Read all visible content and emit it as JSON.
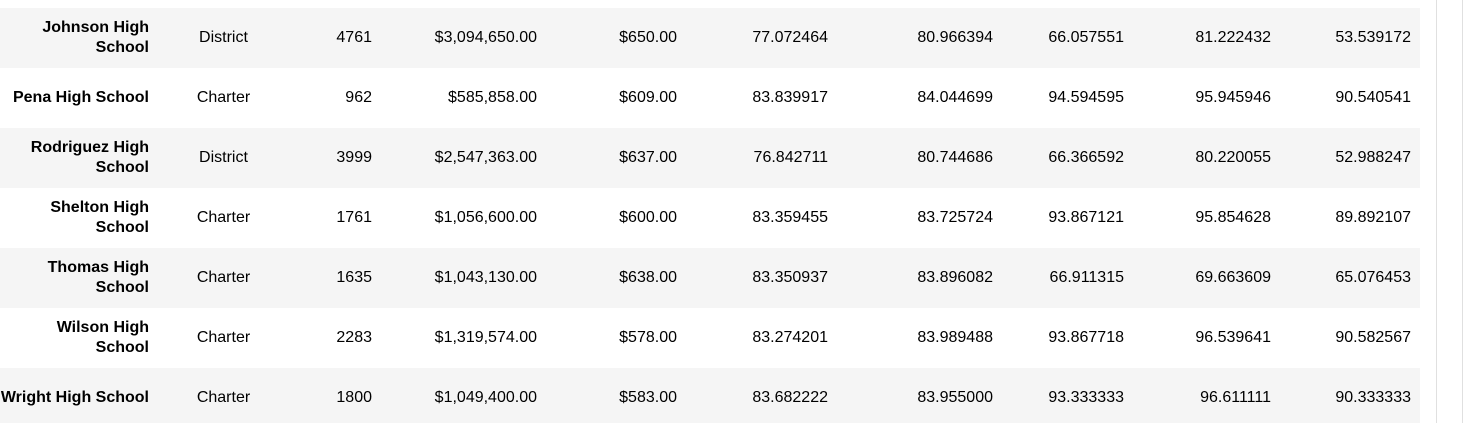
{
  "table": {
    "rows": [
      {
        "school": "Johnson High School",
        "type": "District",
        "students": "4761",
        "budget": "$3,094,650.00",
        "per_capita": "$650.00",
        "avg_math": "77.072464",
        "avg_reading": "80.966394",
        "pct_math": "66.057551",
        "pct_reading": "81.222432",
        "pct_passing": "53.539172"
      },
      {
        "school": "Pena High School",
        "type": "Charter",
        "students": "962",
        "budget": "$585,858.00",
        "per_capita": "$609.00",
        "avg_math": "83.839917",
        "avg_reading": "84.044699",
        "pct_math": "94.594595",
        "pct_reading": "95.945946",
        "pct_passing": "90.540541"
      },
      {
        "school": "Rodriguez High School",
        "type": "District",
        "students": "3999",
        "budget": "$2,547,363.00",
        "per_capita": "$637.00",
        "avg_math": "76.842711",
        "avg_reading": "80.744686",
        "pct_math": "66.366592",
        "pct_reading": "80.220055",
        "pct_passing": "52.988247"
      },
      {
        "school": "Shelton High School",
        "type": "Charter",
        "students": "1761",
        "budget": "$1,056,600.00",
        "per_capita": "$600.00",
        "avg_math": "83.359455",
        "avg_reading": "83.725724",
        "pct_math": "93.867121",
        "pct_reading": "95.854628",
        "pct_passing": "89.892107"
      },
      {
        "school": "Thomas High School",
        "type": "Charter",
        "students": "1635",
        "budget": "$1,043,130.00",
        "per_capita": "$638.00",
        "avg_math": "83.350937",
        "avg_reading": "83.896082",
        "pct_math": "66.911315",
        "pct_reading": "69.663609",
        "pct_passing": "65.076453"
      },
      {
        "school": "Wilson High School",
        "type": "Charter",
        "students": "2283",
        "budget": "$1,319,574.00",
        "per_capita": "$578.00",
        "avg_math": "83.274201",
        "avg_reading": "83.989488",
        "pct_math": "93.867718",
        "pct_reading": "96.539641",
        "pct_passing": "90.582567"
      },
      {
        "school": "Wright High School",
        "type": "Charter",
        "students": "1800",
        "budget": "$1,049,400.00",
        "per_capita": "$583.00",
        "avg_math": "83.682222",
        "avg_reading": "83.955000",
        "pct_math": "93.333333",
        "pct_reading": "96.611111",
        "pct_passing": "90.333333"
      }
    ]
  }
}
